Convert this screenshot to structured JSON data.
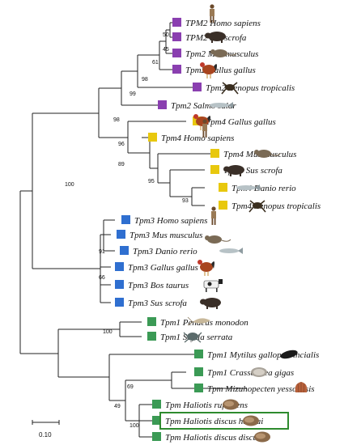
{
  "colors": {
    "TPM2": "#8a3fb0",
    "TPM4": "#e8c80e",
    "TPM3": "#2f6fd0",
    "TPM": "#3b9a55",
    "highlight": "#2e8b2e"
  },
  "scale_bar": {
    "label": "0.10"
  },
  "taxa": [
    {
      "label": "TPM2 Homo sapiens",
      "group": "TPM2",
      "icon": "human-icon"
    },
    {
      "label": "TPM2 Sus scrofa",
      "group": "TPM2",
      "icon": "pig-icon"
    },
    {
      "label": "Tpm2 Mus musculus",
      "group": "TPM2",
      "icon": "mouse-icon"
    },
    {
      "label": "Tpm2 Gallus gallus",
      "group": "TPM2",
      "icon": "chicken-icon"
    },
    {
      "label": "Tpm2 Xenopus tropicalis",
      "group": "TPM2",
      "icon": "frog-icon"
    },
    {
      "label": "Tpm2 Salmo salar",
      "group": "TPM2",
      "icon": "fish-icon"
    },
    {
      "label": "Tpm4 Gallus gallus",
      "group": "TPM4",
      "icon": "chicken-icon"
    },
    {
      "label": "Tpm4 Homo sapiens",
      "group": "TPM4",
      "icon": "human-icon"
    },
    {
      "label": "Tpm4 Mus musculus",
      "group": "TPM4",
      "icon": "mouse-icon"
    },
    {
      "label": "Tpm4 Sus scrofa",
      "group": "TPM4",
      "icon": "pig-icon"
    },
    {
      "label": "Tpm4 Danio rerio",
      "group": "TPM4",
      "icon": "fish-icon"
    },
    {
      "label": "Tpm4 Xenopus tropicalis",
      "group": "TPM4",
      "icon": "frog-icon"
    },
    {
      "label": "Tpm3 Homo sapiens",
      "group": "TPM3",
      "icon": "human-icon"
    },
    {
      "label": "Tpm3 Mus musculus",
      "group": "TPM3",
      "icon": "mouse-icon"
    },
    {
      "label": "Tpm3 Danio rerio",
      "group": "TPM3",
      "icon": "fish-icon"
    },
    {
      "label": "Tpm3 Gallus gallus",
      "group": "TPM3",
      "icon": "chicken-icon"
    },
    {
      "label": "Tpm3 Bos taurus",
      "group": "TPM3",
      "icon": "cow-icon"
    },
    {
      "label": "Tpm3 Sus scrofa",
      "group": "TPM3",
      "icon": "pig-icon"
    },
    {
      "label": "Tpm1 Penaeus monodon",
      "group": "TPM",
      "icon": "shrimp-icon"
    },
    {
      "label": "Tpm1 Scylla serrata",
      "group": "TPM",
      "icon": "crab-icon"
    },
    {
      "label": "Tpm1 Mytilus galloprovincialis",
      "group": "TPM",
      "icon": "mussel-icon"
    },
    {
      "label": "Tpm1 Crassostrea gigas",
      "group": "TPM",
      "icon": "oyster-icon"
    },
    {
      "label": "Tpm Mizuhopecten yessoensis",
      "group": "TPM",
      "icon": "scallop-icon"
    },
    {
      "label": "Tpm Haliotis rufescens",
      "group": "TPM",
      "icon": "abalone-icon"
    },
    {
      "label": "Tpm Haliotis discus hannai",
      "group": "TPM",
      "icon": "abalone-icon",
      "highlighted": true
    },
    {
      "label": "Tpm Haliotis discus discus",
      "group": "TPM",
      "icon": "abalone-icon"
    }
  ],
  "support_values": [
    "50",
    "45",
    "61",
    "98",
    "99",
    "98",
    "96",
    "89",
    "95",
    "93",
    "100",
    "91",
    "66",
    "100",
    "69",
    "49",
    "100"
  ]
}
